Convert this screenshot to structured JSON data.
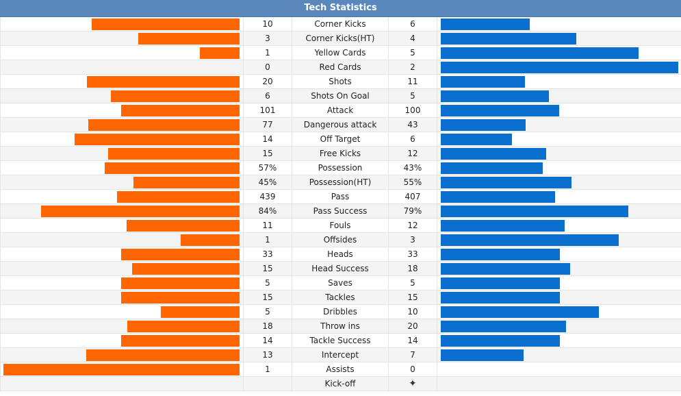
{
  "title": "Tech Statistics",
  "colors": {
    "home": "#ff6600",
    "away": "#0a6fce",
    "header": "#5a88bd"
  },
  "chart_data": {
    "type": "bar",
    "title": "Tech Statistics",
    "orientation": "horizontal-mirrored",
    "categories": [
      "Corner Kicks",
      "Corner Kicks(HT)",
      "Yellow Cards",
      "Red Cards",
      "Shots",
      "Shots On Goal",
      "Attack",
      "Dangerous attack",
      "Off Target",
      "Free Kicks",
      "Possession",
      "Possession(HT)",
      "Pass",
      "Pass Success",
      "Fouls",
      "Offsides",
      "Heads",
      "Head Success",
      "Saves",
      "Tackles",
      "Dribbles",
      "Throw ins",
      "Tackle Success",
      "Intercept",
      "Assists"
    ],
    "series": [
      {
        "values": [
          10,
          3,
          1,
          0,
          20,
          6,
          101,
          77,
          14,
          15,
          57,
          45,
          439,
          84,
          11,
          1,
          33,
          15,
          5,
          15,
          5,
          18,
          14,
          13,
          1
        ]
      },
      {
        "values": [
          6,
          4,
          5,
          2,
          11,
          5,
          100,
          43,
          6,
          12,
          43,
          55,
          407,
          79,
          12,
          3,
          33,
          18,
          5,
          15,
          10,
          20,
          14,
          7,
          0
        ]
      }
    ],
    "home_labels": [
      "10",
      "3",
      "1",
      "0",
      "20",
      "6",
      "101",
      "77",
      "14",
      "15",
      "57%",
      "45%",
      "439",
      "84%",
      "11",
      "1",
      "33",
      "15",
      "5",
      "15",
      "5",
      "18",
      "14",
      "13",
      "1"
    ],
    "away_labels": [
      "6",
      "4",
      "5",
      "2",
      "11",
      "5",
      "100",
      "43",
      "6",
      "12",
      "43%",
      "55%",
      "407",
      "79%",
      "12",
      "3",
      "33",
      "18",
      "5",
      "15",
      "10",
      "20",
      "14",
      "7",
      "0"
    ],
    "bar_fractions": {
      "home": [
        0.625,
        0.429,
        0.167,
        0.0,
        0.645,
        0.545,
        0.502,
        0.642,
        0.7,
        0.556,
        0.57,
        0.45,
        0.519,
        0.84,
        0.478,
        0.25,
        0.5,
        0.455,
        0.5,
        0.5,
        0.333,
        0.474,
        0.5,
        0.65,
        1.0
      ],
      "away": [
        0.375,
        0.571,
        0.833,
        1.0,
        0.355,
        0.455,
        0.498,
        0.358,
        0.3,
        0.444,
        0.43,
        0.55,
        0.481,
        0.79,
        0.522,
        0.75,
        0.5,
        0.545,
        0.5,
        0.5,
        0.667,
        0.526,
        0.5,
        0.35,
        0.0
      ]
    },
    "extra_row": {
      "label": "Kick-off",
      "away_marker": "✦"
    }
  }
}
